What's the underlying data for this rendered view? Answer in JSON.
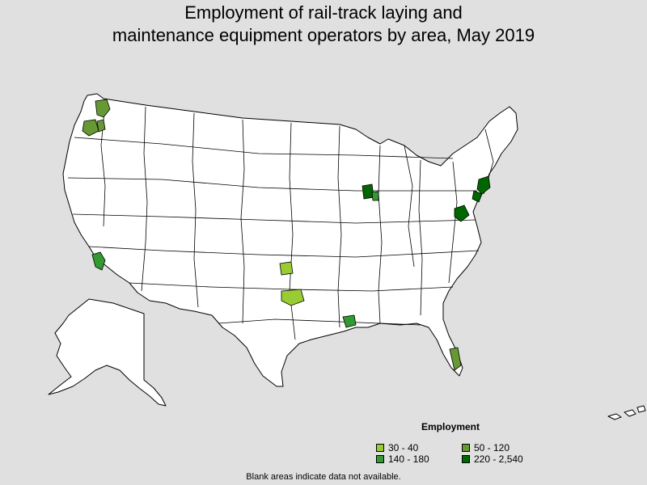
{
  "title": {
    "line1": "Employment of rail-track laying and",
    "line2": "maintenance equipment operators by area, May 2019"
  },
  "legend": {
    "title": "Employment",
    "items": [
      {
        "label": "30 - 40",
        "color": "#99cc33"
      },
      {
        "label": "50 - 120",
        "color": "#669933"
      },
      {
        "label": "140 - 180",
        "color": "#339933"
      },
      {
        "label": "220 - 2,540",
        "color": "#006600"
      }
    ]
  },
  "footnote": "Blank areas indicate data not available.",
  "colors": {
    "background": "#e0e0e0",
    "land": "#ffffff",
    "border": "#000000"
  }
}
